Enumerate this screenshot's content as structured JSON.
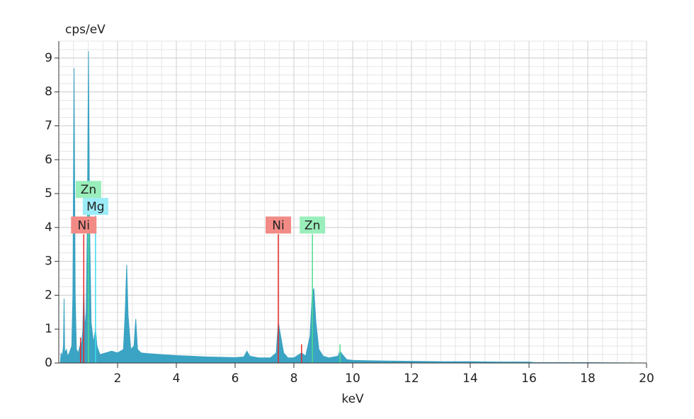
{
  "chart_data": {
    "type": "area",
    "y_label": "cps/eV",
    "x_label": "keV",
    "xlim": [
      0,
      20
    ],
    "ylim": [
      0,
      9.5
    ],
    "xticks": [
      2,
      4,
      6,
      8,
      10,
      12,
      14,
      16,
      18,
      20
    ],
    "yticks": [
      0,
      1,
      2,
      3,
      4,
      5,
      6,
      7,
      8,
      9
    ],
    "grid": true,
    "color": "#3ba3c3",
    "x": [
      0.05,
      0.08,
      0.12,
      0.16,
      0.18,
      0.2,
      0.26,
      0.3,
      0.36,
      0.44,
      0.48,
      0.52,
      0.56,
      0.6,
      0.66,
      0.72,
      0.78,
      0.82,
      0.85,
      0.88,
      0.93,
      0.97,
      1.01,
      1.05,
      1.1,
      1.18,
      1.25,
      1.3,
      1.4,
      1.6,
      1.8,
      2.0,
      2.2,
      2.26,
      2.31,
      2.36,
      2.45,
      2.56,
      2.62,
      2.68,
      2.8,
      3.0,
      3.5,
      4.0,
      4.5,
      5.0,
      5.5,
      6.0,
      6.3,
      6.4,
      6.5,
      6.8,
      7.2,
      7.4,
      7.47,
      7.55,
      7.65,
      7.8,
      8.0,
      8.26,
      8.4,
      8.55,
      8.63,
      8.68,
      8.75,
      8.85,
      9.0,
      9.2,
      9.5,
      9.57,
      9.65,
      9.8,
      10.0,
      10.5,
      11,
      12,
      13,
      14,
      15,
      16,
      16.2,
      17,
      18,
      20
    ],
    "values": [
      0,
      0.3,
      0.2,
      0.5,
      1.9,
      0.3,
      0.4,
      0.2,
      0.3,
      0.5,
      2.0,
      8.7,
      2.0,
      0.4,
      0.3,
      0.5,
      0.6,
      1.0,
      2.4,
      1.0,
      1.5,
      4.0,
      9.2,
      4.0,
      1.2,
      0.6,
      1.0,
      0.5,
      0.25,
      0.3,
      0.35,
      0.3,
      0.4,
      1.5,
      2.9,
      1.4,
      0.4,
      0.5,
      1.3,
      0.4,
      0.3,
      0.28,
      0.25,
      0.22,
      0.2,
      0.18,
      0.17,
      0.16,
      0.18,
      0.35,
      0.2,
      0.15,
      0.15,
      0.3,
      1.2,
      0.8,
      0.3,
      0.15,
      0.15,
      0.3,
      0.2,
      0.8,
      2.1,
      2.2,
      1.2,
      0.4,
      0.2,
      0.15,
      0.2,
      0.35,
      0.25,
      0.1,
      0.08,
      0.07,
      0.06,
      0.05,
      0.04,
      0.04,
      0.03,
      0.03,
      0.01,
      0.01,
      0.01,
      0
    ],
    "element_lines": [
      {
        "label": null,
        "x": 0.74,
        "y": 0.75,
        "color": "#e8282a"
      },
      {
        "label": "Ni",
        "x": 0.85,
        "y": 3.8,
        "color": "#e8282a",
        "label_color": "#f28b86"
      },
      {
        "label": "Zn",
        "x": 1.01,
        "y": 4.85,
        "color": "#4fdc8e",
        "label_color": "#9aeebb"
      },
      {
        "label": "Mg",
        "x": 1.25,
        "y": 4.35,
        "color": "#3fdcee",
        "label_color": "#9cecf8"
      },
      {
        "label": "Ni",
        "x": 7.47,
        "y": 3.8,
        "color": "#e8282a",
        "label_color": "#f28b86"
      },
      {
        "label": null,
        "x": 8.26,
        "y": 0.55,
        "color": "#e8282a"
      },
      {
        "label": "Zn",
        "x": 8.63,
        "y": 3.8,
        "color": "#4fdc8e",
        "label_color": "#9aeebb"
      },
      {
        "label": null,
        "x": 9.57,
        "y": 0.55,
        "color": "#4fdc8e"
      }
    ]
  }
}
